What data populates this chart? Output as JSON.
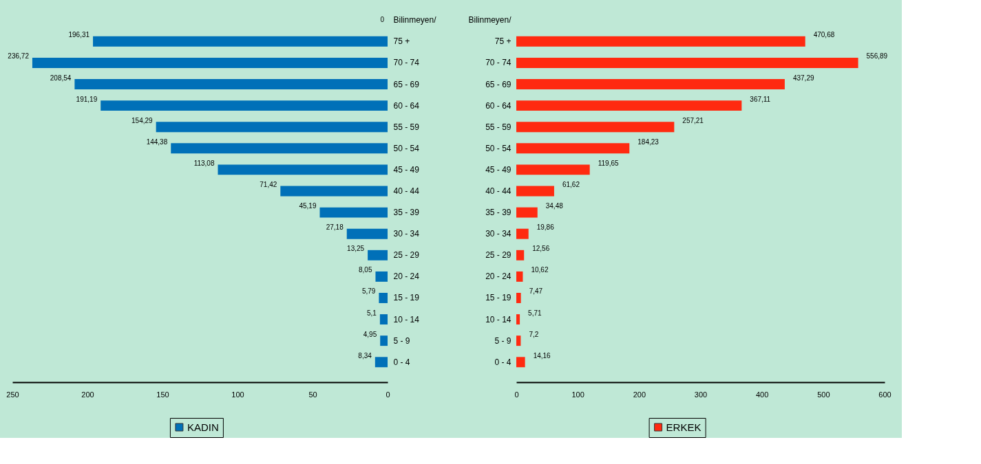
{
  "chart_data": [
    {
      "type": "bar",
      "orientation": "horizontal",
      "categories": [
        "Bilinmeyen/",
        "75 +",
        "70 - 74",
        "65 - 69",
        "60 - 64",
        "55 - 59",
        "50 - 54",
        "45 - 49",
        "40 - 44",
        "35 - 39",
        "30 - 34",
        "25 - 29",
        "20 - 24",
        "15 - 19",
        "10 - 14",
        "5 - 9",
        "0 - 4"
      ],
      "series": [
        {
          "name": "KADIN",
          "color": "#0070b8",
          "values": [
            0,
            196.31,
            236.72,
            208.54,
            191.19,
            154.29,
            144.38,
            113.08,
            71.42,
            45.19,
            27.18,
            13.25,
            8.05,
            5.79,
            5.1,
            4.95,
            8.34
          ],
          "value_labels": [
            "0",
            "196,31",
            "236,72",
            "208,54",
            "191,19",
            "154,29",
            "144,38",
            "113,08",
            "71,42",
            "45,19",
            "27,18",
            "13,25",
            "8,05",
            "5,79",
            "5,1",
            "4,95",
            "8,34"
          ]
        }
      ],
      "xlim": [
        250,
        0
      ],
      "xticks": [
        250,
        200,
        150,
        100,
        50,
        0
      ],
      "legend": "bottom",
      "grid": false
    },
    {
      "type": "bar",
      "orientation": "horizontal",
      "categories": [
        "Bilinmeyen/",
        "75 +",
        "70 - 74",
        "65 - 69",
        "60 - 64",
        "55 - 59",
        "50 - 54",
        "45 - 49",
        "40 - 44",
        "35 - 39",
        "30 - 34",
        "25 - 29",
        "20 - 24",
        "15 - 19",
        "10 - 14",
        "5 - 9",
        "0 - 4"
      ],
      "series": [
        {
          "name": "ERKEK",
          "color": "#ff2a10",
          "values": [
            null,
            470.68,
            556.89,
            437.29,
            367.11,
            257.21,
            184.23,
            119.65,
            61.62,
            34.48,
            19.86,
            12.56,
            10.62,
            7.47,
            5.71,
            7.2,
            14.16
          ],
          "value_labels": [
            null,
            "470,68",
            "556,89",
            "437,29",
            "367,11",
            "257,21",
            "184,23",
            "119,65",
            "61,62",
            "34,48",
            "19,86",
            "12,56",
            "10,62",
            "7,47",
            "5,71",
            "7,2",
            "14,16"
          ]
        }
      ],
      "xlim": [
        0,
        600
      ],
      "xticks": [
        0,
        100,
        200,
        300,
        400,
        500,
        600
      ],
      "legend": "bottom",
      "grid": false
    }
  ]
}
